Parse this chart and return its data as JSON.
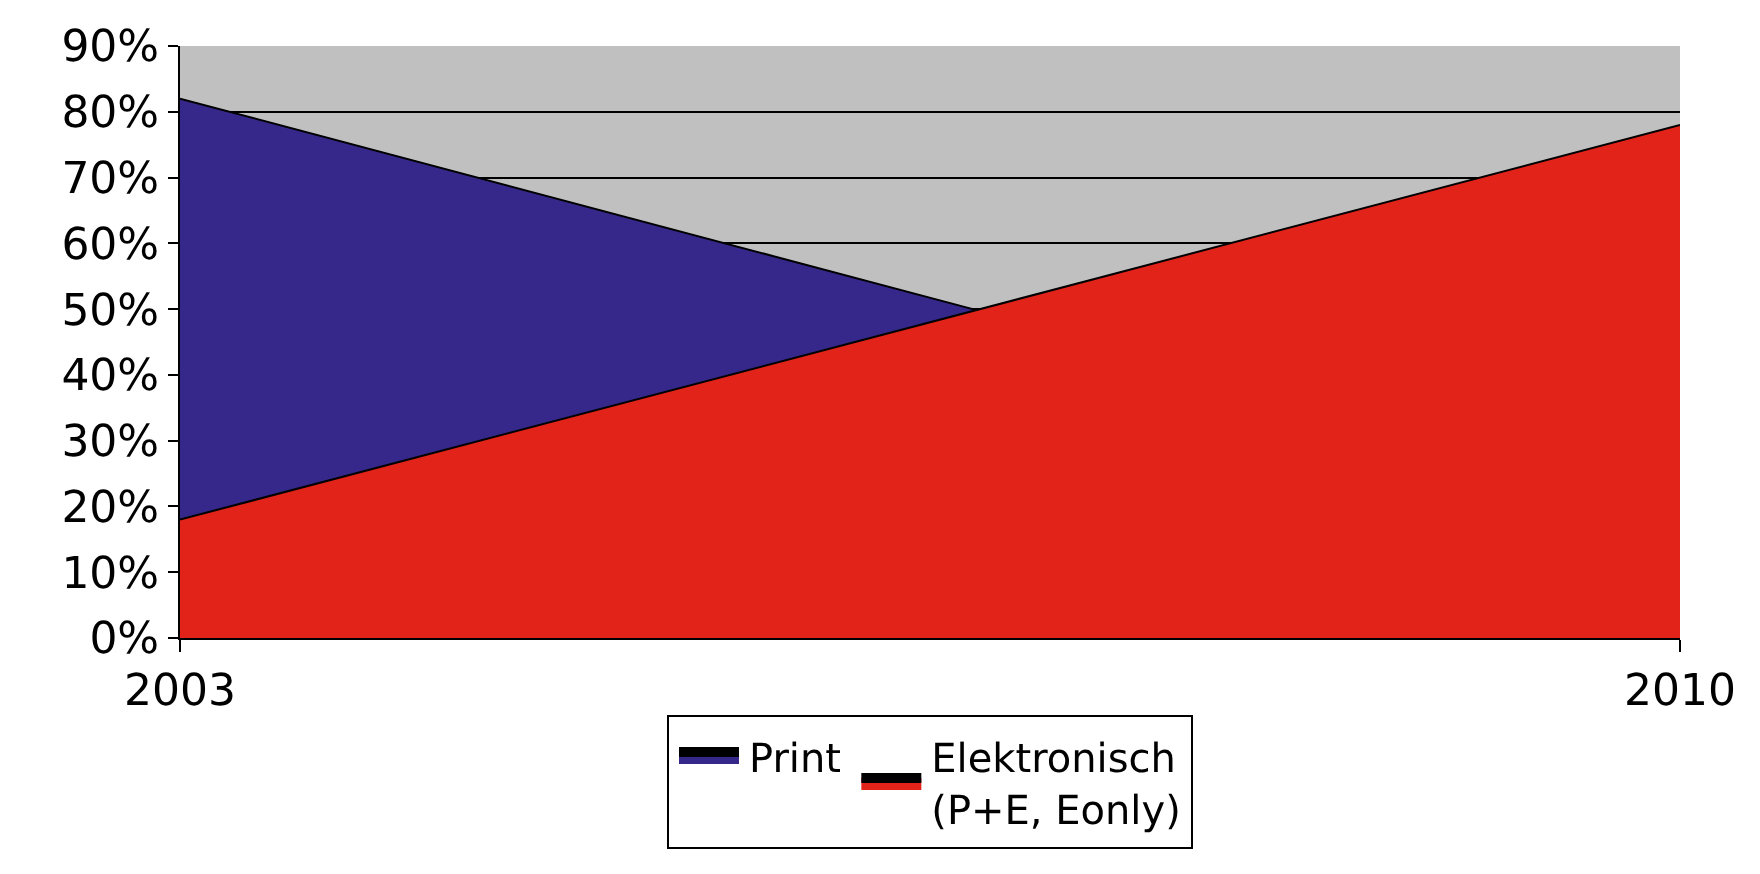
{
  "chart_data": {
    "type": "area",
    "xlim": [
      2003,
      2010
    ],
    "xticks": [
      2003,
      2010
    ],
    "ylim": [
      0,
      90
    ],
    "yticks": [
      {
        "value": 0,
        "label": "0%"
      },
      {
        "value": 10,
        "label": "10%"
      },
      {
        "value": 20,
        "label": "20%"
      },
      {
        "value": 30,
        "label": "30%"
      },
      {
        "value": 40,
        "label": "40%"
      },
      {
        "value": 50,
        "label": "50%"
      },
      {
        "value": 60,
        "label": "60%"
      },
      {
        "value": 70,
        "label": "70%"
      },
      {
        "value": 80,
        "label": "80%"
      },
      {
        "value": 90,
        "label": "90%"
      }
    ],
    "series": [
      {
        "name": "Print",
        "color": "#35288a",
        "x": [
          2003,
          2006.7
        ],
        "values": [
          82,
          50
        ]
      },
      {
        "name": "Elektronisch\n(P+E, Eonly)",
        "color": "#e2231a",
        "x": [
          2003,
          2010
        ],
        "values": [
          18,
          78
        ]
      }
    ],
    "grid": "y",
    "legend": "bottom"
  }
}
